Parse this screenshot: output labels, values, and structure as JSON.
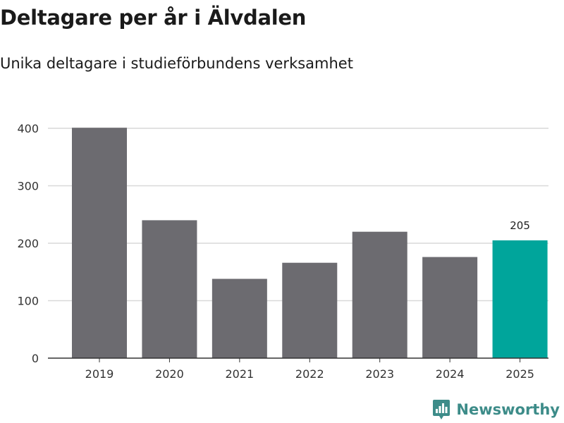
{
  "title": "Deltagare per år i Älvdalen",
  "subtitle": "Unika deltagare i studieförbundens verksamhet",
  "brand": {
    "name": "Newsworthy",
    "icon": "newsworthy-logo-icon",
    "color": "#3d8c89"
  },
  "chart_data": {
    "type": "bar",
    "title": "Deltagare per år i Älvdalen",
    "subtitle": "Unika deltagare i studieförbundens verksamhet",
    "xlabel": "",
    "ylabel": "",
    "categories": [
      "2019",
      "2020",
      "2021",
      "2022",
      "2023",
      "2024",
      "2025"
    ],
    "values": [
      401,
      240,
      138,
      166,
      220,
      176,
      205
    ],
    "ylim": [
      0,
      400
    ],
    "yticks": [
      0,
      100,
      200,
      300,
      400
    ],
    "grid": true,
    "highlight_index": 6,
    "data_labels": [
      {
        "index": 6,
        "text": "205"
      }
    ],
    "colors": {
      "bar": "#6c6b70",
      "highlight": "#00a59b",
      "grid": "#d9d9d9",
      "axis": "#333333"
    }
  }
}
